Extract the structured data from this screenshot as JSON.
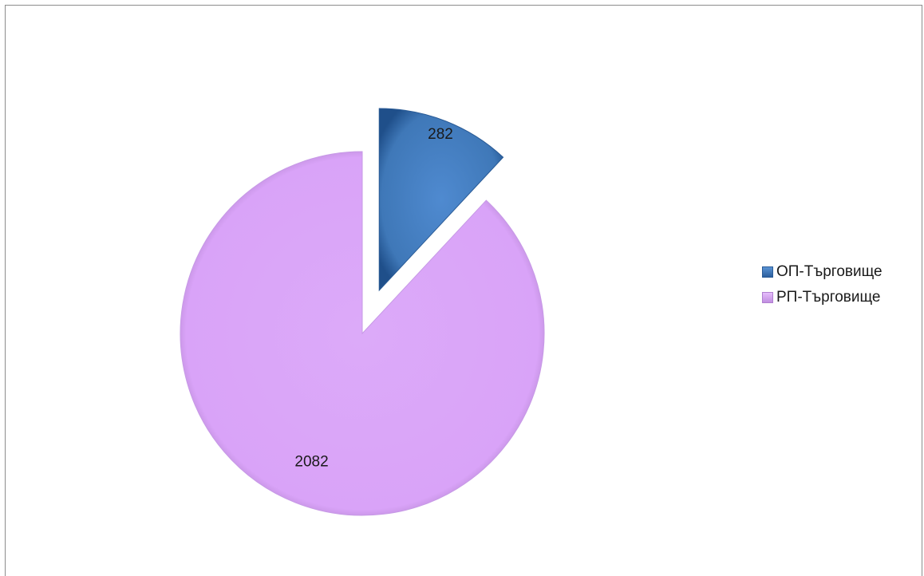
{
  "chart_data": {
    "type": "pie",
    "categories": [
      "ОП-Търговище",
      "РП-Търговище"
    ],
    "values": [
      282,
      2082
    ],
    "data_labels": [
      "282",
      "2082"
    ],
    "colors": [
      "#3f78b8",
      "#d9a3f8"
    ],
    "exploded_slice": "ОП-Търговище",
    "legend_position": "right",
    "title": ""
  }
}
